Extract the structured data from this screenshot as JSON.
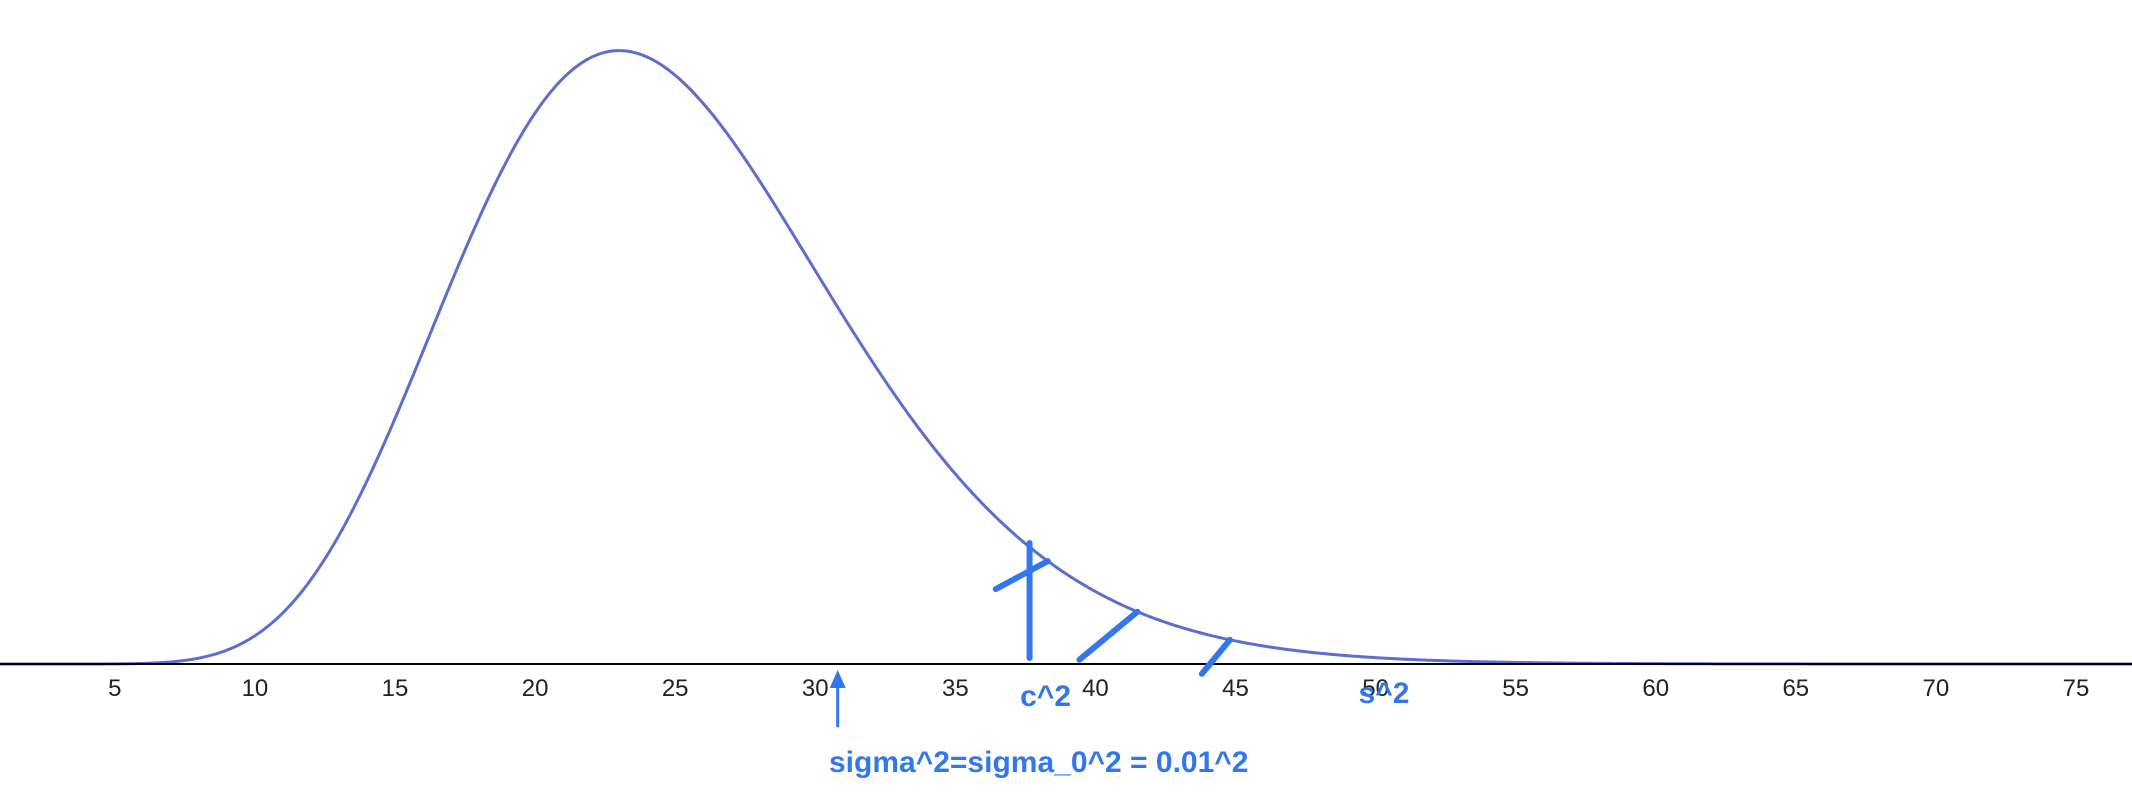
{
  "chart_data": {
    "type": "line",
    "distribution": "chi-square",
    "degrees_of_freedom": 25,
    "title": "",
    "xlabel": "",
    "ylabel": "",
    "xlim": [
      0.9,
      77.0
    ],
    "ylim": [
      0,
      0.0575
    ],
    "xticks": [
      5,
      10,
      15,
      20,
      25,
      30,
      35,
      40,
      45,
      50,
      55,
      60,
      65,
      70,
      75
    ],
    "grid": false,
    "curve_color": "#5a6fd0",
    "axis_color": "#000000",
    "annotation_color": "#3377ee",
    "critical_x": 37.65,
    "shade_hatch_x": [
      38.3,
      41.5,
      44.8
    ],
    "labels": {
      "critical": "c^2",
      "statistic": "s^2",
      "statistic_x": 50.3,
      "null_hypothesis": "sigma^2=sigma_0^2 = 0.01^2",
      "null_arrow_x": 30.8
    }
  }
}
